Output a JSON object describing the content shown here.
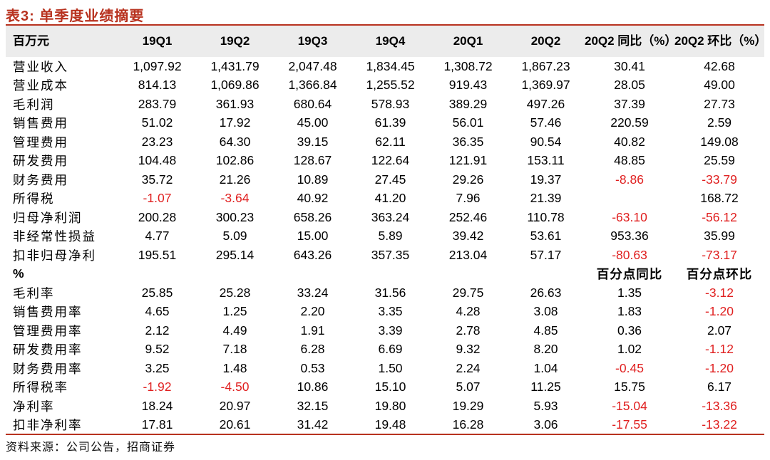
{
  "title": "表3:  单季度业绩摘要",
  "header": [
    "百万元",
    "19Q1",
    "19Q2",
    "19Q3",
    "19Q4",
    "20Q1",
    "20Q2",
    "20Q2 同比（%）",
    "20Q2 环比（%）"
  ],
  "rows": [
    [
      "营业收入",
      "1,097.92",
      "1,431.79",
      "2,047.48",
      "1,834.45",
      "1,308.72",
      "1,867.23",
      "30.41",
      "42.68"
    ],
    [
      "营业成本",
      "814.13",
      "1,069.86",
      "1,366.84",
      "1,255.52",
      "919.43",
      "1,369.97",
      "28.05",
      "49.00"
    ],
    [
      "毛利润",
      "283.79",
      "361.93",
      "680.64",
      "578.93",
      "389.29",
      "497.26",
      "37.39",
      "27.73"
    ],
    [
      "销售费用",
      "51.02",
      "17.92",
      "45.00",
      "61.39",
      "56.01",
      "57.46",
      "220.59",
      "2.59"
    ],
    [
      "管理费用",
      "23.23",
      "64.30",
      "39.15",
      "62.11",
      "36.35",
      "90.54",
      "40.82",
      "149.08"
    ],
    [
      "研发费用",
      "104.48",
      "102.86",
      "128.67",
      "122.64",
      "121.91",
      "153.11",
      "48.85",
      "25.59"
    ],
    [
      "财务费用",
      "35.72",
      "21.26",
      "10.89",
      "27.45",
      "29.26",
      "19.37",
      "-8.86",
      "-33.79"
    ],
    [
      "所得税",
      "-1.07",
      "-3.64",
      "40.92",
      "41.20",
      "7.96",
      "21.39",
      "",
      "168.72"
    ],
    [
      "归母净利润",
      "200.28",
      "300.23",
      "658.26",
      "363.24",
      "252.46",
      "110.78",
      "-63.10",
      "-56.12"
    ],
    [
      "非经常性损益",
      "4.77",
      "5.09",
      "15.00",
      "5.89",
      "39.42",
      "53.61",
      "953.36",
      "35.99"
    ],
    [
      "扣非归母净利",
      "195.51",
      "295.14",
      "643.26",
      "357.35",
      "213.04",
      "57.17",
      "-80.63",
      "-73.17"
    ],
    [
      "%",
      "",
      "",
      "",
      "",
      "",
      "",
      "百分点同比",
      "百分点环比"
    ],
    [
      "毛利率",
      "25.85",
      "25.28",
      "33.24",
      "31.56",
      "29.75",
      "26.63",
      "1.35",
      "-3.12"
    ],
    [
      "销售费用率",
      "4.65",
      "1.25",
      "2.20",
      "3.35",
      "4.28",
      "3.08",
      "1.83",
      "-1.20"
    ],
    [
      "管理费用率",
      "2.12",
      "4.49",
      "1.91",
      "3.39",
      "2.78",
      "4.85",
      "0.36",
      "2.07"
    ],
    [
      "研发费用率",
      "9.52",
      "7.18",
      "6.28",
      "6.69",
      "9.32",
      "8.20",
      "1.02",
      "-1.12"
    ],
    [
      "财务费用率",
      "3.25",
      "1.48",
      "0.53",
      "1.50",
      "2.24",
      "1.04",
      "-0.45",
      "-1.20"
    ],
    [
      "所得税率",
      "-1.92",
      "-4.50",
      "10.86",
      "15.10",
      "5.07",
      "11.25",
      "15.75",
      "6.17"
    ],
    [
      "净利率",
      "18.24",
      "20.97",
      "32.15",
      "19.80",
      "19.29",
      "5.93",
      "-15.04",
      "-13.36"
    ],
    [
      "扣非净利率",
      "17.81",
      "20.61",
      "31.42",
      "19.48",
      "16.28",
      "3.06",
      "-17.55",
      "-13.22"
    ]
  ],
  "source": "资料来源：公司公告，招商证券",
  "colors": {
    "accent": "#b8321f",
    "negative": "#e02020",
    "header_bg": "#ececec"
  }
}
